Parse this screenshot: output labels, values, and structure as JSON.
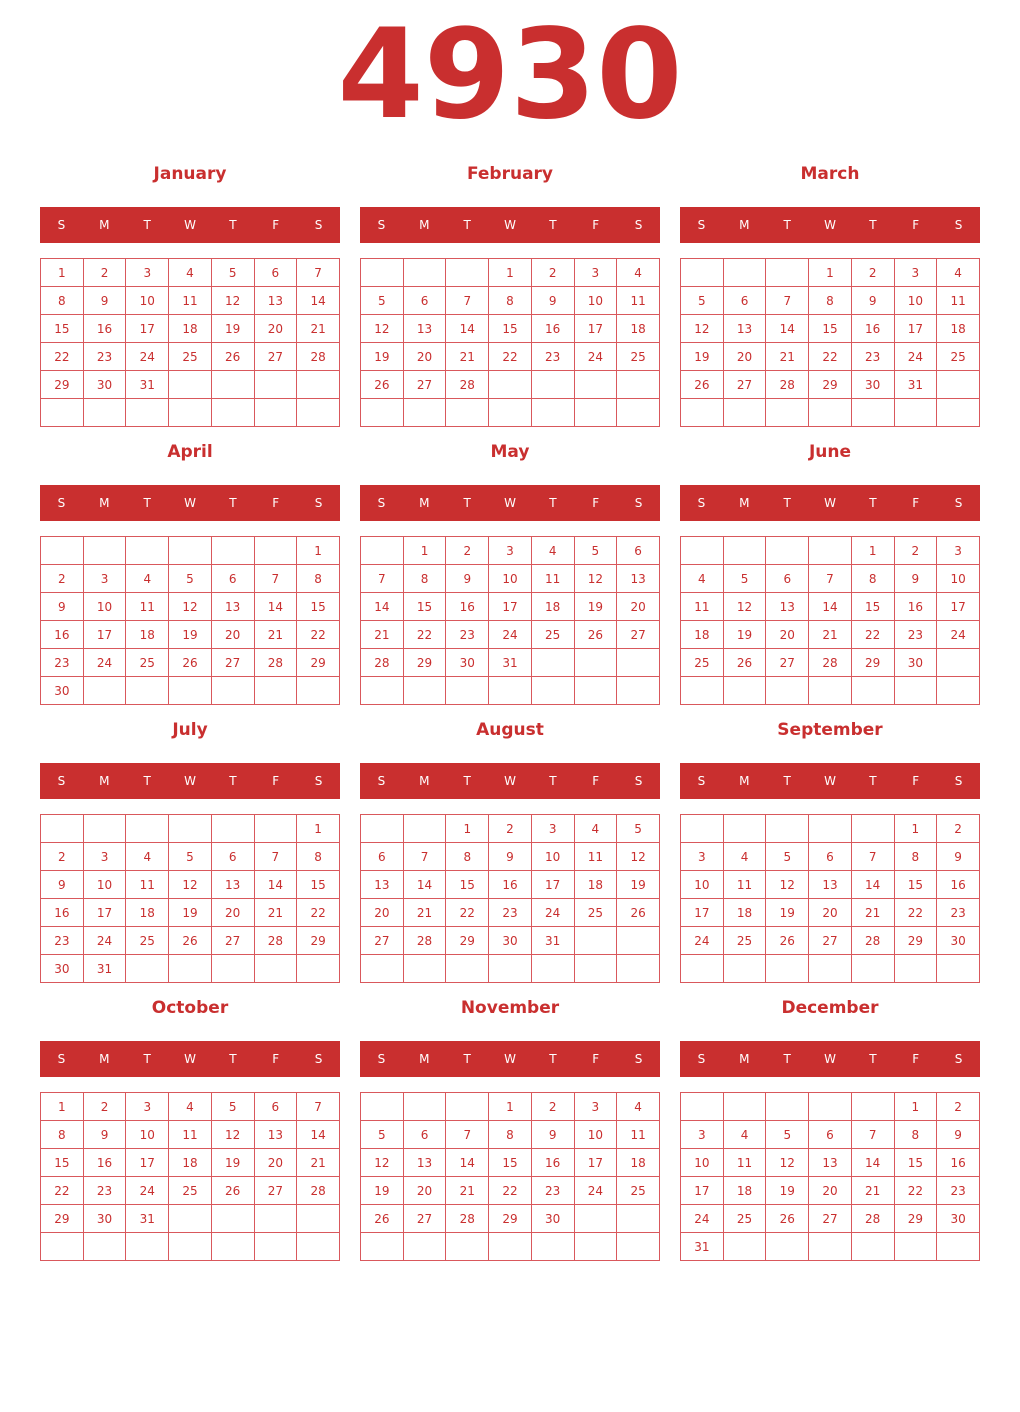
{
  "year": "4930",
  "colors": {
    "accent": "#c92f2f",
    "header_text": "#ffffff"
  },
  "weekdays": [
    "S",
    "M",
    "T",
    "W",
    "T",
    "F",
    "S"
  ],
  "months": [
    {
      "name": "January",
      "weeks": [
        [
          1,
          2,
          3,
          4,
          5,
          6,
          7
        ],
        [
          8,
          9,
          10,
          11,
          12,
          13,
          14
        ],
        [
          15,
          16,
          17,
          18,
          19,
          20,
          21
        ],
        [
          22,
          23,
          24,
          25,
          26,
          27,
          28
        ],
        [
          29,
          30,
          31,
          "",
          "",
          "",
          ""
        ],
        [
          "",
          "",
          "",
          "",
          "",
          "",
          ""
        ]
      ]
    },
    {
      "name": "February",
      "weeks": [
        [
          "",
          "",
          "",
          1,
          2,
          3,
          4
        ],
        [
          5,
          6,
          7,
          8,
          9,
          10,
          11
        ],
        [
          12,
          13,
          14,
          15,
          16,
          17,
          18
        ],
        [
          19,
          20,
          21,
          22,
          23,
          24,
          25
        ],
        [
          26,
          27,
          28,
          "",
          "",
          "",
          ""
        ],
        [
          "",
          "",
          "",
          "",
          "",
          "",
          ""
        ]
      ]
    },
    {
      "name": "March",
      "weeks": [
        [
          "",
          "",
          "",
          1,
          2,
          3,
          4
        ],
        [
          5,
          6,
          7,
          8,
          9,
          10,
          11
        ],
        [
          12,
          13,
          14,
          15,
          16,
          17,
          18
        ],
        [
          19,
          20,
          21,
          22,
          23,
          24,
          25
        ],
        [
          26,
          27,
          28,
          29,
          30,
          31,
          ""
        ],
        [
          "",
          "",
          "",
          "",
          "",
          "",
          ""
        ]
      ]
    },
    {
      "name": "April",
      "weeks": [
        [
          "",
          "",
          "",
          "",
          "",
          "",
          1
        ],
        [
          2,
          3,
          4,
          5,
          6,
          7,
          8
        ],
        [
          9,
          10,
          11,
          12,
          13,
          14,
          15
        ],
        [
          16,
          17,
          18,
          19,
          20,
          21,
          22
        ],
        [
          23,
          24,
          25,
          26,
          27,
          28,
          29
        ],
        [
          30,
          "",
          "",
          "",
          "",
          "",
          ""
        ]
      ]
    },
    {
      "name": "May",
      "weeks": [
        [
          "",
          1,
          2,
          3,
          4,
          5,
          6
        ],
        [
          7,
          8,
          9,
          10,
          11,
          12,
          13
        ],
        [
          14,
          15,
          16,
          17,
          18,
          19,
          20
        ],
        [
          21,
          22,
          23,
          24,
          25,
          26,
          27
        ],
        [
          28,
          29,
          30,
          31,
          "",
          "",
          ""
        ],
        [
          "",
          "",
          "",
          "",
          "",
          "",
          ""
        ]
      ]
    },
    {
      "name": "June",
      "weeks": [
        [
          "",
          "",
          "",
          "",
          1,
          2,
          3
        ],
        [
          4,
          5,
          6,
          7,
          8,
          9,
          10
        ],
        [
          11,
          12,
          13,
          14,
          15,
          16,
          17
        ],
        [
          18,
          19,
          20,
          21,
          22,
          23,
          24
        ],
        [
          25,
          26,
          27,
          28,
          29,
          30,
          ""
        ],
        [
          "",
          "",
          "",
          "",
          "",
          "",
          ""
        ]
      ]
    },
    {
      "name": "July",
      "weeks": [
        [
          "",
          "",
          "",
          "",
          "",
          "",
          1
        ],
        [
          2,
          3,
          4,
          5,
          6,
          7,
          8
        ],
        [
          9,
          10,
          11,
          12,
          13,
          14,
          15
        ],
        [
          16,
          17,
          18,
          19,
          20,
          21,
          22
        ],
        [
          23,
          24,
          25,
          26,
          27,
          28,
          29
        ],
        [
          30,
          31,
          "",
          "",
          "",
          "",
          ""
        ]
      ]
    },
    {
      "name": "August",
      "weeks": [
        [
          "",
          "",
          1,
          2,
          3,
          4,
          5
        ],
        [
          6,
          7,
          8,
          9,
          10,
          11,
          12
        ],
        [
          13,
          14,
          15,
          16,
          17,
          18,
          19
        ],
        [
          20,
          21,
          22,
          23,
          24,
          25,
          26
        ],
        [
          27,
          28,
          29,
          30,
          31,
          "",
          ""
        ],
        [
          "",
          "",
          "",
          "",
          "",
          "",
          ""
        ]
      ]
    },
    {
      "name": "September",
      "weeks": [
        [
          "",
          "",
          "",
          "",
          "",
          1,
          2
        ],
        [
          3,
          4,
          5,
          6,
          7,
          8,
          9
        ],
        [
          10,
          11,
          12,
          13,
          14,
          15,
          16
        ],
        [
          17,
          18,
          19,
          20,
          21,
          22,
          23
        ],
        [
          24,
          25,
          26,
          27,
          28,
          29,
          30
        ],
        [
          "",
          "",
          "",
          "",
          "",
          "",
          ""
        ]
      ]
    },
    {
      "name": "October",
      "weeks": [
        [
          1,
          2,
          3,
          4,
          5,
          6,
          7
        ],
        [
          8,
          9,
          10,
          11,
          12,
          13,
          14
        ],
        [
          15,
          16,
          17,
          18,
          19,
          20,
          21
        ],
        [
          22,
          23,
          24,
          25,
          26,
          27,
          28
        ],
        [
          29,
          30,
          31,
          "",
          "",
          "",
          ""
        ],
        [
          "",
          "",
          "",
          "",
          "",
          "",
          ""
        ]
      ]
    },
    {
      "name": "November",
      "weeks": [
        [
          "",
          "",
          "",
          1,
          2,
          3,
          4
        ],
        [
          5,
          6,
          7,
          8,
          9,
          10,
          11
        ],
        [
          12,
          13,
          14,
          15,
          16,
          17,
          18
        ],
        [
          19,
          20,
          21,
          22,
          23,
          24,
          25
        ],
        [
          26,
          27,
          28,
          29,
          30,
          "",
          ""
        ],
        [
          "",
          "",
          "",
          "",
          "",
          "",
          ""
        ]
      ]
    },
    {
      "name": "December",
      "weeks": [
        [
          "",
          "",
          "",
          "",
          "",
          1,
          2
        ],
        [
          3,
          4,
          5,
          6,
          7,
          8,
          9
        ],
        [
          10,
          11,
          12,
          13,
          14,
          15,
          16
        ],
        [
          17,
          18,
          19,
          20,
          21,
          22,
          23
        ],
        [
          24,
          25,
          26,
          27,
          28,
          29,
          30
        ],
        [
          31,
          "",
          "",
          "",
          "",
          "",
          ""
        ]
      ]
    }
  ]
}
